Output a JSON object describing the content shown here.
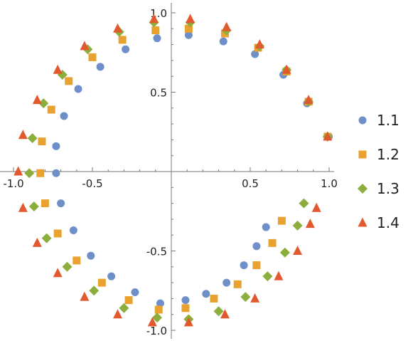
{
  "chart_data": {
    "type": "scatter",
    "title": "",
    "xlabel": "",
    "ylabel": "",
    "xlim": [
      -1.0,
      1.0
    ],
    "ylim": [
      -1.0,
      1.0
    ],
    "grid": false,
    "legend_position": "right",
    "x_ticks": [
      {
        "value": -1.0,
        "label": "-1.0"
      },
      {
        "value": -0.5,
        "label": "-0.5"
      },
      {
        "value": 0.5,
        "label": "0.5"
      },
      {
        "value": 1.0,
        "label": "1.0"
      }
    ],
    "y_ticks": [
      {
        "value": 1.0,
        "label": "1.0"
      },
      {
        "value": 0.5,
        "label": "0.5"
      },
      {
        "value": -0.5,
        "label": "-0.5"
      },
      {
        "value": -1.0,
        "label": "-1.0"
      }
    ],
    "series": [
      {
        "name": "1.1",
        "color": "#6f8fc8",
        "marker": "circle",
        "points": [
          [
            0.998,
            0.22
          ],
          [
            0.86,
            0.43
          ],
          [
            0.71,
            0.61
          ],
          [
            0.53,
            0.74
          ],
          [
            0.33,
            0.82
          ],
          [
            0.11,
            0.86
          ],
          [
            -0.09,
            0.84
          ],
          [
            -0.29,
            0.77
          ],
          [
            -0.45,
            0.66
          ],
          [
            -0.59,
            0.52
          ],
          [
            -0.68,
            0.35
          ],
          [
            -0.73,
            0.16
          ],
          [
            -0.73,
            -0.01
          ],
          [
            -0.7,
            -0.2
          ],
          [
            -0.62,
            -0.37
          ],
          [
            -0.51,
            -0.53
          ],
          [
            -0.38,
            -0.66
          ],
          [
            -0.23,
            -0.76
          ],
          [
            -0.07,
            -0.83
          ],
          [
            0.09,
            -0.81
          ],
          [
            0.22,
            -0.77
          ],
          [
            0.35,
            -0.7
          ],
          [
            0.46,
            -0.59
          ],
          [
            0.54,
            -0.47
          ],
          [
            0.6,
            -0.35
          ]
        ]
      },
      {
        "name": "1.2",
        "color": "#e9a12f",
        "marker": "square",
        "points": [
          [
            0.99,
            0.22
          ],
          [
            0.87,
            0.44
          ],
          [
            0.73,
            0.63
          ],
          [
            0.55,
            0.78
          ],
          [
            0.34,
            0.87
          ],
          [
            0.11,
            0.9
          ],
          [
            -0.1,
            0.89
          ],
          [
            -0.31,
            0.83
          ],
          [
            -0.5,
            0.72
          ],
          [
            -0.65,
            0.57
          ],
          [
            -0.76,
            0.39
          ],
          [
            -0.82,
            0.19
          ],
          [
            -0.83,
            -0.01
          ],
          [
            -0.8,
            -0.2
          ],
          [
            -0.72,
            -0.39
          ],
          [
            -0.6,
            -0.56
          ],
          [
            -0.44,
            -0.7
          ],
          [
            -0.27,
            -0.81
          ],
          [
            -0.08,
            -0.87
          ],
          [
            0.09,
            -0.86
          ],
          [
            0.27,
            -0.8
          ],
          [
            0.42,
            -0.71
          ],
          [
            0.54,
            -0.59
          ],
          [
            0.64,
            -0.45
          ],
          [
            0.7,
            -0.31
          ]
        ]
      },
      {
        "name": "1.3",
        "color": "#8cae3c",
        "marker": "diamond",
        "points": [
          [
            0.99,
            0.22
          ],
          [
            0.87,
            0.44
          ],
          [
            0.73,
            0.64
          ],
          [
            0.56,
            0.79
          ],
          [
            0.35,
            0.89
          ],
          [
            0.12,
            0.94
          ],
          [
            -0.11,
            0.94
          ],
          [
            -0.33,
            0.88
          ],
          [
            -0.53,
            0.77
          ],
          [
            -0.69,
            0.61
          ],
          [
            -0.81,
            0.43
          ],
          [
            -0.88,
            0.21
          ],
          [
            -0.9,
            -0.01
          ],
          [
            -0.87,
            -0.22
          ],
          [
            -0.79,
            -0.42
          ],
          [
            -0.66,
            -0.6
          ],
          [
            -0.49,
            -0.75
          ],
          [
            -0.3,
            -0.86
          ],
          [
            -0.09,
            -0.92
          ],
          [
            0.11,
            -0.93
          ],
          [
            0.3,
            -0.88
          ],
          [
            0.47,
            -0.79
          ],
          [
            0.61,
            -0.66
          ],
          [
            0.72,
            -0.51
          ],
          [
            0.8,
            -0.34
          ],
          [
            0.84,
            -0.2
          ]
        ]
      },
      {
        "name": "1.4",
        "color": "#e3592f",
        "marker": "triangle",
        "points": [
          [
            0.99,
            0.22
          ],
          [
            0.87,
            0.45
          ],
          [
            0.73,
            0.64
          ],
          [
            0.56,
            0.8
          ],
          [
            0.35,
            0.91
          ],
          [
            0.12,
            0.96
          ],
          [
            -0.11,
            0.96
          ],
          [
            -0.34,
            0.9
          ],
          [
            -0.55,
            0.79
          ],
          [
            -0.72,
            0.64
          ],
          [
            -0.85,
            0.45
          ],
          [
            -0.94,
            0.23
          ],
          [
            -0.97,
            0.0
          ],
          [
            -0.94,
            -0.23
          ],
          [
            -0.85,
            -0.45
          ],
          [
            -0.72,
            -0.64
          ],
          [
            -0.55,
            -0.79
          ],
          [
            -0.34,
            -0.9
          ],
          [
            -0.12,
            -0.95
          ],
          [
            0.11,
            -0.95
          ],
          [
            0.34,
            -0.9
          ],
          [
            0.53,
            -0.8
          ],
          [
            0.68,
            -0.66
          ],
          [
            0.8,
            -0.5
          ],
          [
            0.88,
            -0.33
          ],
          [
            0.92,
            -0.23
          ]
        ]
      }
    ]
  }
}
